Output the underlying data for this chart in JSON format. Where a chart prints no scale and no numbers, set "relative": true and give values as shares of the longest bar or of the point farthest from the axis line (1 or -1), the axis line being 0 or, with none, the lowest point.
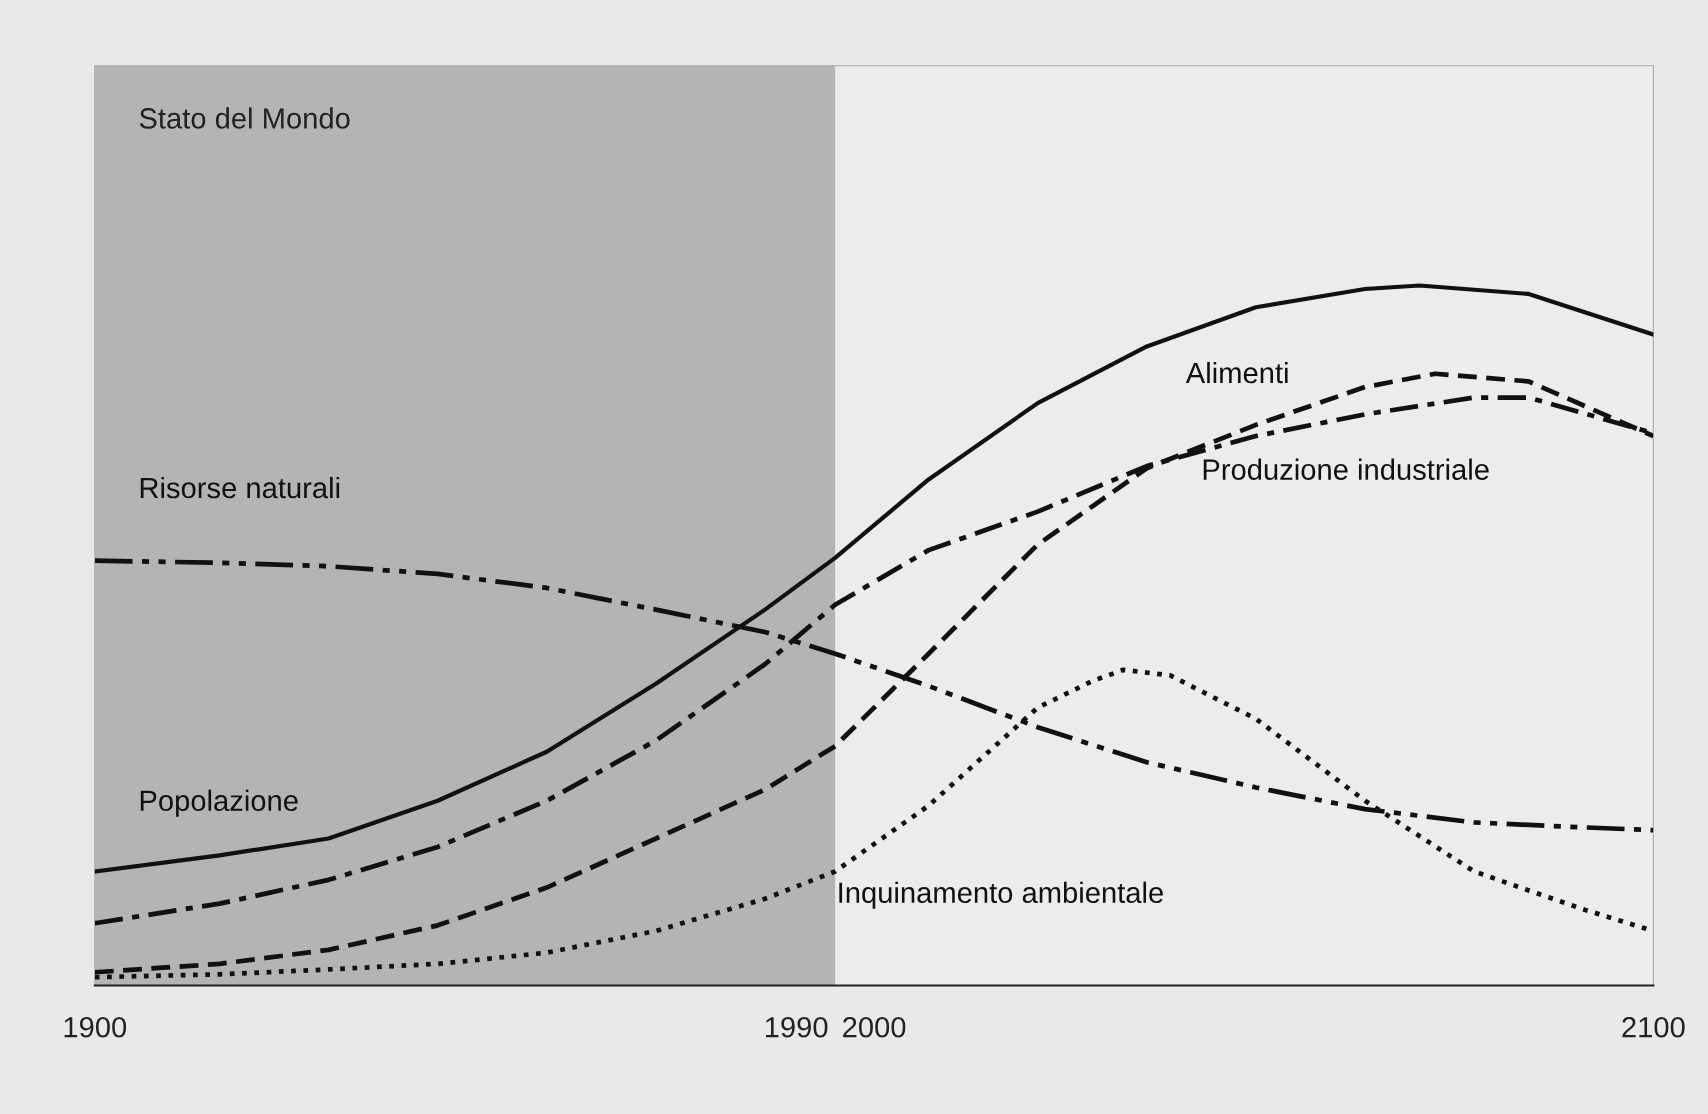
{
  "chart_data": {
    "type": "line",
    "title": "Stato del Mondo",
    "relative": true,
    "xlim": [
      1900,
      2100
    ],
    "xticks": [
      1900,
      1990,
      2000,
      2100
    ],
    "grid": false,
    "legend": false,
    "marker": "none",
    "bands": [
      {
        "axis": "x",
        "from": 1900,
        "to": 1995,
        "color": "#b4b4b4"
      }
    ],
    "series": [
      {
        "name": "Popolazione",
        "color": "#111111",
        "line_style": "solid",
        "x": [
          1900,
          1916,
          1930,
          1944,
          1958,
          1972,
          1986,
          1995,
          2007,
          2021,
          2035,
          2049,
          2063,
          2070,
          2084,
          2100
        ],
        "values": [
          0.163,
          0.186,
          0.21,
          0.264,
          0.334,
          0.431,
          0.537,
          0.611,
          0.723,
          0.832,
          0.913,
          0.969,
          0.995,
          1,
          0.988,
          0.93
        ]
      },
      {
        "name": "Alimenti",
        "color": "#111111",
        "line_style": "dashed",
        "x": [
          1900,
          1916,
          1930,
          1944,
          1958,
          1972,
          1986,
          1995,
          2007,
          2021,
          2035,
          2049,
          2063,
          2072,
          2084,
          2100
        ],
        "values": [
          0.019,
          0.031,
          0.051,
          0.086,
          0.14,
          0.21,
          0.28,
          0.342,
          0.474,
          0.63,
          0.739,
          0.801,
          0.855,
          0.874,
          0.863,
          0.785
        ]
      },
      {
        "name": "Produzione industriale",
        "color": "#111111",
        "line_style": "dashdot",
        "x": [
          1900,
          1916,
          1930,
          1944,
          1958,
          1972,
          1986,
          1995,
          2007,
          2021,
          2035,
          2049,
          2063,
          2077,
          2084,
          2100
        ],
        "values": [
          0.089,
          0.117,
          0.151,
          0.198,
          0.264,
          0.35,
          0.459,
          0.544,
          0.622,
          0.677,
          0.742,
          0.785,
          0.816,
          0.84,
          0.84,
          0.789
        ]
      },
      {
        "name": "Inquinamento ambientale",
        "color": "#111111",
        "line_style": "dotted",
        "x": [
          1900,
          1916,
          1930,
          1944,
          1958,
          1972,
          1986,
          1995,
          2007,
          2021,
          2028,
          2032,
          2038,
          2049,
          2063,
          2077,
          2091,
          2100
        ],
        "values": [
          0.012,
          0.016,
          0.023,
          0.031,
          0.047,
          0.078,
          0.124,
          0.163,
          0.257,
          0.397,
          0.435,
          0.451,
          0.443,
          0.381,
          0.264,
          0.163,
          0.109,
          0.078
        ]
      },
      {
        "name": "Risorse naturali",
        "color": "#111111",
        "line_style": "dashdotdot",
        "x": [
          1900,
          1916,
          1930,
          1944,
          1958,
          1972,
          1986,
          1995,
          2007,
          2021,
          2035,
          2049,
          2063,
          2077,
          2091,
          2100
        ],
        "values": [
          0.607,
          0.604,
          0.599,
          0.588,
          0.568,
          0.537,
          0.505,
          0.474,
          0.428,
          0.369,
          0.319,
          0.283,
          0.252,
          0.233,
          0.226,
          0.222
        ]
      }
    ]
  }
}
